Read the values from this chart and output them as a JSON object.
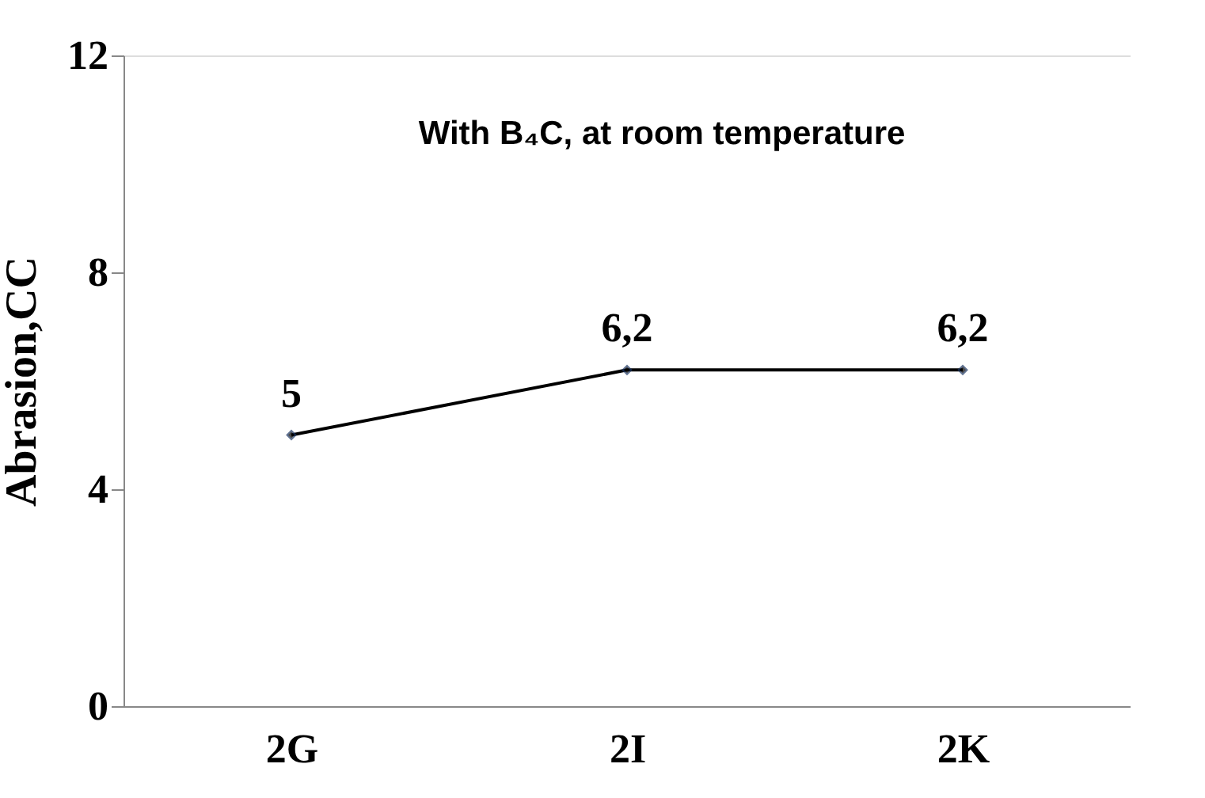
{
  "chart_data": {
    "type": "line",
    "title": "With  B₄C, at room temperature",
    "ylabel": "Abrasion,CC",
    "categories": [
      "2G",
      "2I",
      "2K"
    ],
    "series": [
      {
        "color": "#000000",
        "values": [
          5,
          6.2,
          6.2
        ],
        "value_labels": [
          "5",
          "6,2",
          "6,2"
        ]
      }
    ],
    "ylim": [
      0,
      12
    ],
    "yticks": [
      0,
      4,
      8,
      12
    ],
    "grid": false,
    "marker": "diamond",
    "line_style": "solid"
  }
}
